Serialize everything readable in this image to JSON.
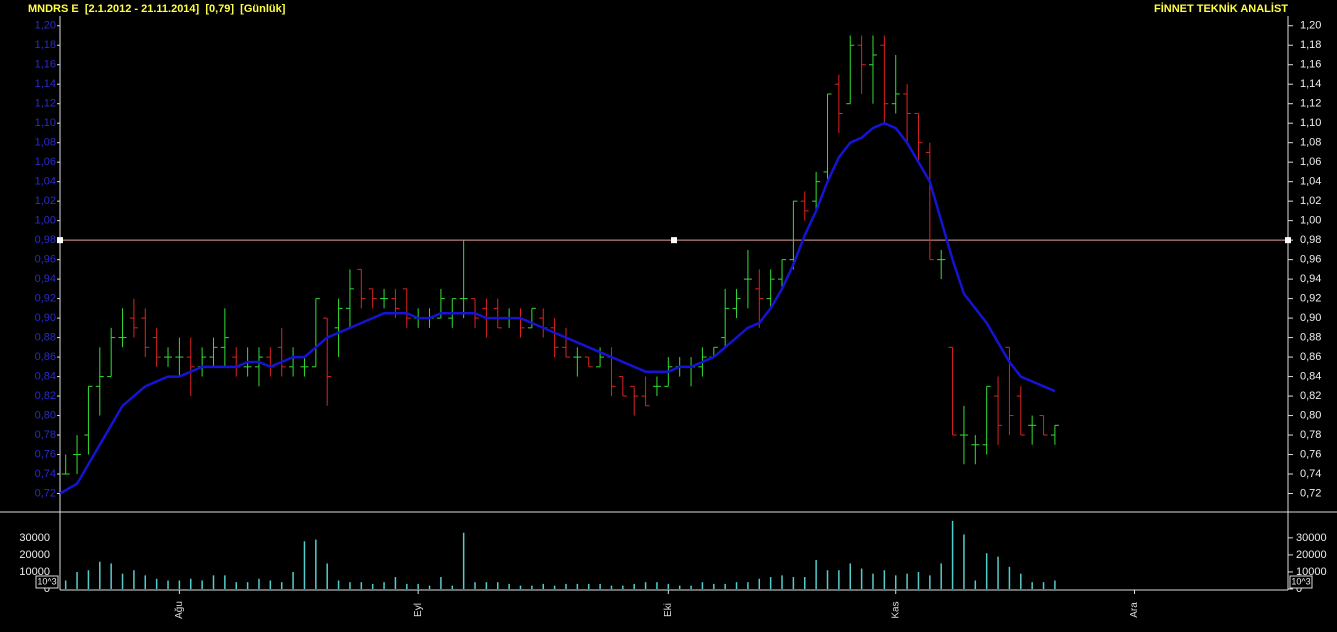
{
  "header": {
    "title": "MNDRS E  [2.1.2012 - 21.11.2014]  [0,79]  [Günlük]",
    "brand": "FİNNET TEKNİK ANALİST"
  },
  "chart_data": [
    {
      "type": "ohlc",
      "categories": [
        null,
        null,
        null,
        null,
        null,
        null,
        null,
        null,
        null,
        null,
        "Ağu",
        null,
        null,
        null,
        null,
        null,
        null,
        null,
        null,
        null,
        null,
        null,
        null,
        null,
        null,
        null,
        null,
        null,
        null,
        null,
        null,
        "Eyl",
        null,
        null,
        null,
        null,
        null,
        null,
        null,
        null,
        null,
        null,
        null,
        null,
        null,
        null,
        null,
        null,
        null,
        null,
        null,
        null,
        null,
        "Eki",
        null,
        null,
        null,
        null,
        null,
        null,
        null,
        null,
        null,
        null,
        null,
        null,
        null,
        null,
        null,
        null,
        null,
        null,
        null,
        "Kas",
        null,
        null,
        null,
        null,
        null,
        null,
        null,
        null,
        null,
        null,
        null,
        null,
        null,
        null,
        null,
        null,
        null,
        null,
        null,
        null,
        "Ara",
        null,
        null,
        null,
        null,
        null,
        null,
        null,
        null,
        null,
        null,
        null,
        null,
        null
      ],
      "open": [
        0.74,
        0.76,
        0.78,
        0.83,
        0.84,
        0.88,
        0.9,
        0.9,
        0.88,
        0.86,
        0.86,
        0.86,
        0.85,
        0.86,
        0.87,
        0.86,
        0.85,
        0.85,
        0.86,
        0.87,
        0.85,
        0.85,
        0.85,
        0.9,
        0.89,
        0.91,
        0.95,
        0.93,
        0.92,
        0.92,
        0.93,
        0.9,
        0.9,
        0.9,
        0.9,
        0.92,
        0.92,
        0.91,
        0.91,
        0.9,
        0.9,
        0.89,
        0.9,
        0.89,
        0.87,
        0.86,
        0.86,
        0.85,
        0.86,
        0.84,
        0.83,
        0.82,
        0.83,
        0.83,
        0.85,
        0.85,
        0.85,
        0.86,
        0.88,
        0.91,
        0.94,
        0.93,
        0.92,
        0.94,
        0.96,
        1.02,
        1.02,
        1.05,
        1.14,
        1.12,
        1.18,
        1.16,
        1.18,
        1.12,
        1.13,
        1.11,
        1.07,
        0.96,
        0.87,
        0.78,
        0.77,
        0.77,
        0.82,
        0.87,
        0.82,
        0.79,
        0.8,
        0.78,
        null,
        null,
        null,
        null,
        null,
        null,
        null,
        null,
        null,
        null,
        null,
        null,
        null,
        null,
        null,
        null,
        null,
        null,
        null,
        null
      ],
      "high": [
        0.76,
        0.78,
        0.83,
        0.87,
        0.89,
        0.91,
        0.92,
        0.91,
        0.89,
        0.87,
        0.88,
        0.88,
        0.87,
        0.88,
        0.91,
        0.87,
        0.87,
        0.87,
        0.87,
        0.89,
        0.87,
        0.86,
        0.92,
        0.9,
        0.92,
        0.95,
        0.95,
        0.93,
        0.93,
        0.93,
        0.93,
        0.91,
        0.91,
        0.93,
        0.92,
        0.98,
        0.92,
        0.92,
        0.92,
        0.91,
        0.91,
        0.91,
        0.91,
        0.9,
        0.89,
        0.87,
        0.86,
        0.87,
        0.87,
        0.84,
        0.83,
        0.84,
        0.84,
        0.86,
        0.86,
        0.86,
        0.87,
        0.87,
        0.93,
        0.93,
        0.97,
        0.95,
        0.95,
        0.96,
        1.02,
        1.03,
        1.05,
        1.13,
        1.15,
        1.19,
        1.19,
        1.19,
        1.19,
        1.17,
        1.14,
        1.11,
        1.08,
        0.97,
        0.87,
        0.81,
        0.78,
        0.83,
        0.84,
        0.87,
        0.83,
        0.8,
        0.8,
        0.79,
        null,
        null,
        null,
        null,
        null,
        null,
        null,
        null,
        null,
        null,
        null,
        null,
        null,
        null,
        null,
        null,
        null,
        null,
        null,
        null
      ],
      "low": [
        0.74,
        0.74,
        0.76,
        0.8,
        0.84,
        0.87,
        0.88,
        0.86,
        0.85,
        0.85,
        0.84,
        0.82,
        0.84,
        0.85,
        0.85,
        0.84,
        0.84,
        0.83,
        0.84,
        0.84,
        0.84,
        0.84,
        0.85,
        0.81,
        0.86,
        0.89,
        0.91,
        0.91,
        0.91,
        0.9,
        0.89,
        0.89,
        0.89,
        0.9,
        0.89,
        0.9,
        0.89,
        0.88,
        0.89,
        0.89,
        0.88,
        0.89,
        0.88,
        0.86,
        0.86,
        0.84,
        0.85,
        0.85,
        0.82,
        0.82,
        0.8,
        0.81,
        0.82,
        0.83,
        0.84,
        0.83,
        0.84,
        0.86,
        0.87,
        0.9,
        0.91,
        0.89,
        0.91,
        0.93,
        0.95,
        1.0,
        1.01,
        1.04,
        1.09,
        1.12,
        1.13,
        1.12,
        1.1,
        1.11,
        1.08,
        1.06,
        0.96,
        0.94,
        0.78,
        0.75,
        0.75,
        0.76,
        0.77,
        0.78,
        0.78,
        0.77,
        0.78,
        0.77,
        null,
        null,
        null,
        null,
        null,
        null,
        null,
        null,
        null,
        null,
        null,
        null,
        null,
        null,
        null,
        null,
        null,
        null,
        null,
        null
      ],
      "close": [
        0.74,
        0.76,
        0.83,
        0.84,
        0.88,
        0.88,
        0.89,
        0.87,
        0.86,
        0.86,
        0.86,
        0.85,
        0.86,
        0.87,
        0.88,
        0.85,
        0.85,
        0.86,
        0.85,
        0.85,
        0.86,
        0.85,
        0.92,
        0.84,
        0.91,
        0.93,
        0.92,
        0.92,
        0.92,
        0.91,
        0.9,
        0.9,
        0.9,
        0.92,
        0.92,
        0.92,
        0.9,
        0.9,
        0.89,
        0.9,
        0.89,
        0.91,
        0.89,
        0.87,
        0.86,
        0.86,
        0.85,
        0.86,
        0.83,
        0.82,
        0.82,
        0.81,
        0.83,
        0.85,
        0.85,
        0.85,
        0.86,
        0.87,
        0.91,
        0.92,
        0.94,
        0.92,
        0.94,
        0.96,
        1.02,
        1.01,
        1.04,
        1.13,
        1.11,
        1.18,
        1.16,
        1.17,
        1.12,
        1.13,
        1.11,
        1.08,
        0.96,
        0.96,
        0.78,
        0.78,
        0.77,
        0.83,
        0.79,
        0.8,
        0.78,
        0.79,
        0.78,
        0.79,
        null,
        null,
        null,
        null,
        null,
        null,
        null,
        null,
        null,
        null,
        null,
        null,
        null,
        null,
        null,
        null,
        null,
        null,
        null,
        null
      ],
      "up_color": "#33dd33",
      "down_color": "#dd2222",
      "line_values": [
        0.72,
        0.73,
        0.75,
        0.77,
        0.79,
        0.81,
        0.82,
        0.83,
        0.835,
        0.84,
        0.84,
        0.845,
        0.85,
        0.85,
        0.85,
        0.85,
        0.855,
        0.855,
        0.85,
        0.855,
        0.86,
        0.86,
        0.87,
        0.88,
        0.885,
        0.89,
        0.895,
        0.9,
        0.905,
        0.905,
        0.905,
        0.9,
        0.9,
        0.905,
        0.905,
        0.905,
        0.905,
        0.9,
        0.9,
        0.9,
        0.9,
        0.895,
        0.89,
        0.885,
        0.88,
        0.875,
        0.87,
        0.865,
        0.86,
        0.855,
        0.85,
        0.845,
        0.845,
        0.845,
        0.85,
        0.85,
        0.855,
        0.86,
        0.87,
        0.88,
        0.89,
        0.895,
        0.91,
        0.93,
        0.955,
        0.985,
        1.01,
        1.04,
        1.065,
        1.08,
        1.085,
        1.095,
        1.1,
        1.095,
        1.08,
        1.06,
        1.04,
        1.0,
        0.96,
        0.925,
        0.91,
        0.895,
        0.875,
        0.855,
        0.84,
        0.835,
        0.83,
        0.825,
        null,
        null,
        null,
        null,
        null,
        null,
        null,
        null,
        null,
        null,
        null,
        null,
        null,
        null,
        null,
        null,
        null,
        null,
        null,
        null
      ],
      "line_color": "#1414d2",
      "hline": 0.98,
      "hline_color": "#e8a0a0",
      "ylim": [
        0.7,
        1.21
      ],
      "yticks": [
        {
          "value": 0.72,
          "label": "0,72"
        },
        {
          "value": 0.74,
          "label": "0,74"
        },
        {
          "value": 0.76,
          "label": "0,76"
        },
        {
          "value": 0.78,
          "label": "0,78"
        },
        {
          "value": 0.8,
          "label": "0,80"
        },
        {
          "value": 0.82,
          "label": "0,82"
        },
        {
          "value": 0.84,
          "label": "0,84"
        },
        {
          "value": 0.86,
          "label": "0,86"
        },
        {
          "value": 0.88,
          "label": "0,88"
        },
        {
          "value": 0.9,
          "label": "0,90"
        },
        {
          "value": 0.92,
          "label": "0,92"
        },
        {
          "value": 0.94,
          "label": "0,94"
        },
        {
          "value": 0.96,
          "label": "0,96"
        },
        {
          "value": 0.98,
          "label": "0,98"
        },
        {
          "value": 1.0,
          "label": "1,00"
        },
        {
          "value": 1.02,
          "label": "1,02"
        },
        {
          "value": 1.04,
          "label": "1,04"
        },
        {
          "value": 1.06,
          "label": "1,06"
        },
        {
          "value": 1.08,
          "label": "1,08"
        },
        {
          "value": 1.1,
          "label": "1,10"
        },
        {
          "value": 1.12,
          "label": "1,12"
        },
        {
          "value": 1.14,
          "label": "1,14"
        },
        {
          "value": 1.16,
          "label": "1,16"
        },
        {
          "value": 1.18,
          "label": "1,18"
        },
        {
          "value": 1.2,
          "label": "1,20"
        }
      ]
    },
    {
      "type": "bar",
      "color": "#55cccc",
      "volume_unit": "10^3",
      "values": [
        5000,
        10000,
        11000,
        16000,
        15000,
        9000,
        11000,
        8000,
        6000,
        5000,
        5000,
        6000,
        5000,
        8000,
        8000,
        4000,
        4000,
        6000,
        5000,
        4000,
        10000,
        28000,
        29000,
        15000,
        5000,
        4000,
        4000,
        3000,
        4000,
        7000,
        3000,
        3000,
        2000,
        7000,
        2000,
        33000,
        4000,
        4000,
        4000,
        3000,
        2000,
        2000,
        3000,
        2000,
        3000,
        3000,
        3000,
        3000,
        2000,
        2000,
        3000,
        4000,
        4000,
        3000,
        2000,
        2000,
        4000,
        3000,
        3000,
        4000,
        4000,
        6000,
        7000,
        8000,
        7000,
        7000,
        17000,
        11000,
        11000,
        15000,
        12000,
        9000,
        11000,
        8000,
        9000,
        10000,
        8000,
        15000,
        40000,
        32000,
        5000,
        21000,
        19000,
        13000,
        9000,
        4000,
        4000,
        5000,
        null,
        null,
        null,
        null,
        null,
        null,
        null,
        null,
        null,
        null,
        null,
        null,
        null,
        null,
        null,
        null,
        null,
        null,
        null,
        null
      ],
      "ylim": [
        0,
        44000
      ],
      "yticks": [
        0,
        10000,
        20000,
        30000
      ]
    }
  ]
}
